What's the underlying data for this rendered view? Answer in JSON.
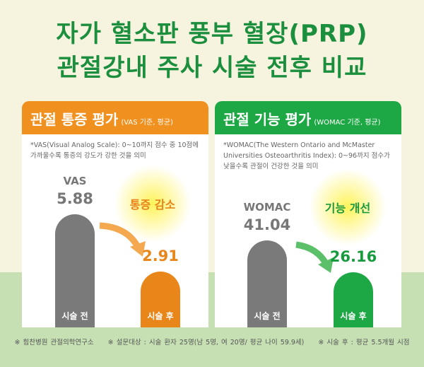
{
  "title": {
    "line1": "자가 혈소판 풍부 혈장(PRP)",
    "line2": "관절강내 주사 시술 전후 비교"
  },
  "colors": {
    "title": "#1b8f3d",
    "orange": "#f0901e",
    "green": "#1ea845",
    "gray": "#7a7a7a"
  },
  "chart_data": [
    {
      "type": "bar",
      "title": "관절 통증 평가",
      "subtitle": "(VAS 기준, 평균)",
      "note": "*VAS(Visual Analog Scale): 0~10까지 점수 중 10점에 가까울수록 통증의 강도가 강한 것을 의미",
      "series_label": "VAS",
      "categories": [
        "시술 전",
        "시술 후"
      ],
      "values": [
        5.88,
        2.91
      ],
      "value_labels": [
        "5.88",
        "2.91"
      ],
      "callout": "통증 감소",
      "ylim": [
        0,
        10
      ]
    },
    {
      "type": "bar",
      "title": "관절 기능 평가",
      "subtitle": "(WOMAC 기준, 평균)",
      "note": "*WOMAC(The Western Ontario and McMaster Universities Osteoarthritis Index): 0~96까지 점수가 낮을수록 관절이 건강한 것을 의미",
      "series_label": "WOMAC",
      "categories": [
        "시술 전",
        "시술 후"
      ],
      "values": [
        41.04,
        26.16
      ],
      "value_labels": [
        "41.04",
        "26.16"
      ],
      "callout": "기능 개선",
      "ylim": [
        0,
        96
      ]
    }
  ],
  "footer": [
    "※ 힘찬병원 관절의학연구소",
    "※ 설문대상 : 시술 환자 25명(남 5명, 여 20명/ 평균 나이 59.9세)",
    "※ 시술 후 : 평균 5.5개월 시점"
  ]
}
